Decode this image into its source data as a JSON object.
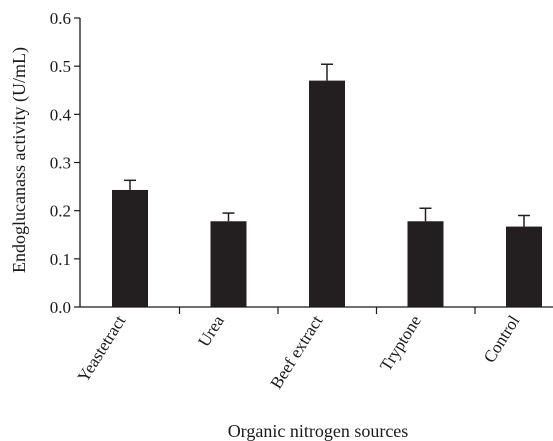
{
  "chart_data": {
    "type": "bar",
    "xlabel": "Organic nitrogen sources",
    "ylabel": "Endoglucanass activity (U/mL)",
    "categories": [
      "Yeastetract",
      "Urea",
      "Beef extract",
      "Tryptone",
      "Control"
    ],
    "values": [
      0.243,
      0.178,
      0.47,
      0.178,
      0.167
    ],
    "errors": [
      0.02,
      0.017,
      0.034,
      0.027,
      0.023
    ],
    "ylim": [
      0,
      0.6
    ],
    "yticks": [
      "0.0",
      "0.1",
      "0.2",
      "0.3",
      "0.4",
      "0.5",
      "0.6"
    ],
    "grid": false,
    "bar_color": "#231f20"
  }
}
